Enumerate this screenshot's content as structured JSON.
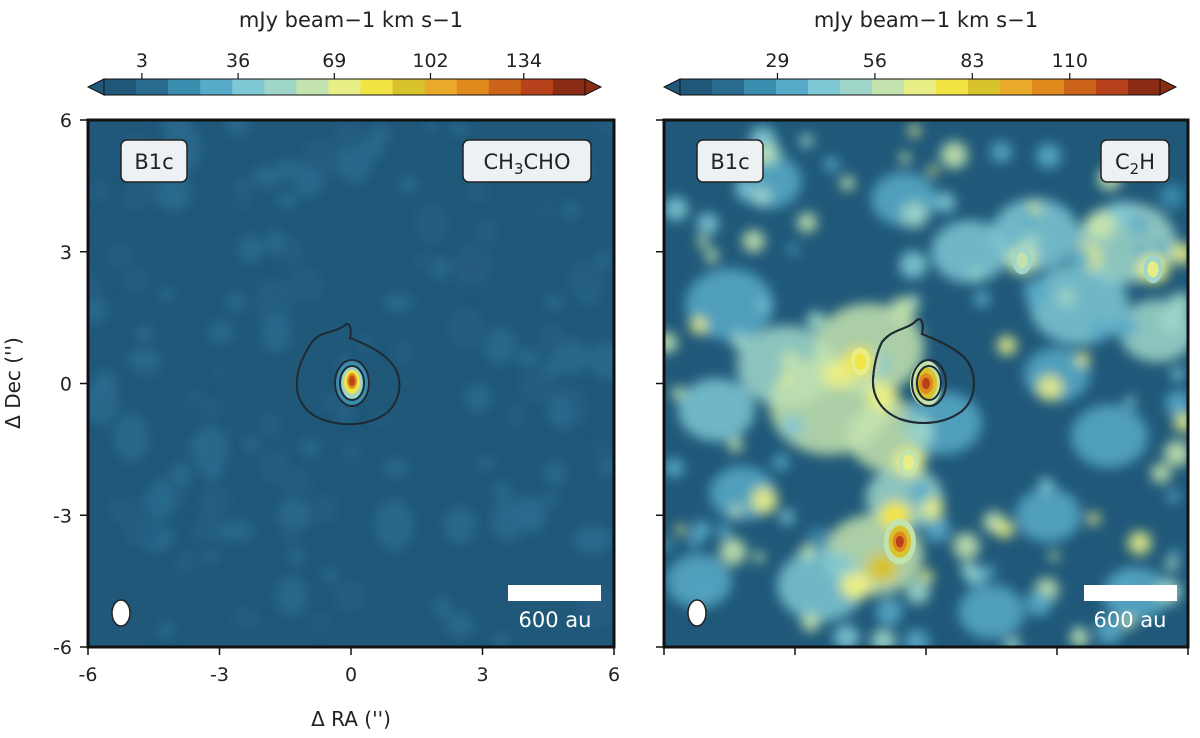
{
  "chart_data": [
    {
      "type": "heatmap",
      "source": "B1c",
      "molecule_label": "CH3CHO",
      "colorbar": {
        "label": "mJy beam−1 km s−1",
        "ticks": [
          3,
          36,
          69,
          102,
          134
        ],
        "range": [
          -10,
          155
        ]
      },
      "xlabel": "Δ RA ('')",
      "ylabel": "Δ Dec ('')",
      "xlim": [
        -6,
        6
      ],
      "ylim": [
        -6,
        6
      ],
      "xticks": [
        "-6",
        "-3",
        "0",
        "3",
        "6"
      ],
      "yticks": [
        "6",
        "3",
        "0",
        "-3",
        "-6"
      ],
      "background_level": 3,
      "peak": {
        "x": 0.05,
        "y": 0.0,
        "value": 150
      },
      "scale_bar": "600 au",
      "beam": {
        "x": -5.3,
        "y": -5.3,
        "shape": "ellipse"
      }
    },
    {
      "type": "heatmap",
      "source": "B1c",
      "molecule_label": "C2H",
      "colorbar": {
        "label": "mJy beam−1 km s−1",
        "ticks": [
          29,
          56,
          83,
          110
        ],
        "range": [
          2,
          135
        ]
      },
      "xlim": [
        -6,
        6
      ],
      "ylim": [
        -6,
        6
      ],
      "background_level": 10,
      "emission_peaks": [
        {
          "x": 0.0,
          "y": 0.0,
          "value": 130
        },
        {
          "x": -0.6,
          "y": -3.6,
          "value": 125
        },
        {
          "x": -1.5,
          "y": 0.5,
          "value": 80
        },
        {
          "x": -0.4,
          "y": -1.8,
          "value": 70
        },
        {
          "x": 5.2,
          "y": 2.6,
          "value": 65
        },
        {
          "x": 2.2,
          "y": 2.8,
          "value": 60
        }
      ],
      "scale_bar": "600 au",
      "beam": {
        "x": -5.3,
        "y": -5.3,
        "shape": "ellipse"
      }
    }
  ]
}
